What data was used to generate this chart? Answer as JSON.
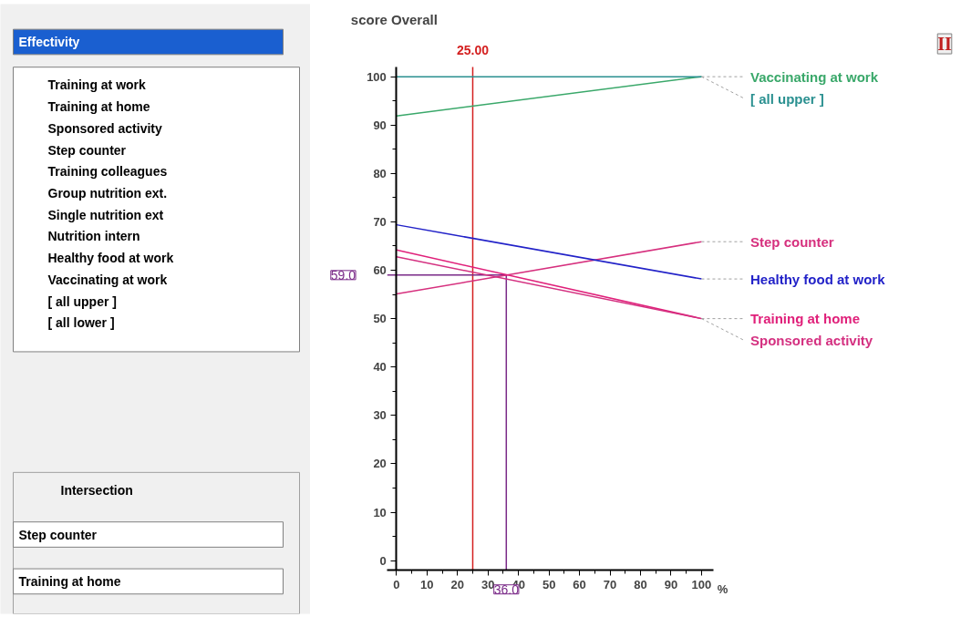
{
  "chart_data": [
    {
      "type": "other",
      "annotations": [
        "Effectivity",
        "Training at work",
        "Training at home",
        "Sponsored activity",
        "Step counter",
        "Training colleagues",
        "Group nutrition ext.",
        "Single nutrition ext",
        "Nutrition intern",
        "Healthy food at work",
        "Vaccinating at work",
        "[ all upper ]",
        "[ all lower ]",
        "Intersection",
        "Step counter",
        "Training at home"
      ]
    },
    {
      "type": "line",
      "ylabel": "score Overall",
      "xlabel": "%",
      "x": [
        0,
        100
      ],
      "series": [
        {
          "name": "Vaccinating at work",
          "color": "#3aa86a",
          "values": [
            91.9,
            100
          ]
        },
        {
          "name": "[ all upper ]",
          "color": "#2a9090",
          "values": [
            100,
            100
          ]
        },
        {
          "name": "Step counter",
          "color": "#d6307e",
          "values": [
            55.1,
            65.9
          ]
        },
        {
          "name": "Healthy food at work",
          "color": "#2222c8",
          "values": [
            69.4,
            58.2
          ]
        },
        {
          "name": "Training at home",
          "color": "#e0207a",
          "values": [
            64.2,
            50
          ]
        },
        {
          "name": "Sponsored activity",
          "color": "#d43080",
          "values": [
            62.8,
            50
          ]
        }
      ],
      "xlim": [
        -3,
        104
      ],
      "ylim": [
        -2,
        102
      ],
      "xticks": [
        0,
        10,
        20,
        30,
        40,
        50,
        60,
        70,
        80,
        90,
        100
      ],
      "yticks": [
        0,
        10,
        20,
        30,
        40,
        50,
        60,
        70,
        80,
        90,
        100
      ],
      "ref_lines": [
        {
          "axis": "x",
          "value": 25,
          "label": "25.00",
          "color": "#d42020"
        },
        {
          "axis": "x",
          "value": 36,
          "label": "36.0",
          "color": "#7a2a88"
        },
        {
          "axis": "y",
          "value": 59,
          "label": "59.0",
          "color": "#7a2a88"
        }
      ],
      "annotations": [
        "II"
      ],
      "legend": false,
      "grid": false,
      "marker": "none",
      "line_style": "solid"
    }
  ]
}
